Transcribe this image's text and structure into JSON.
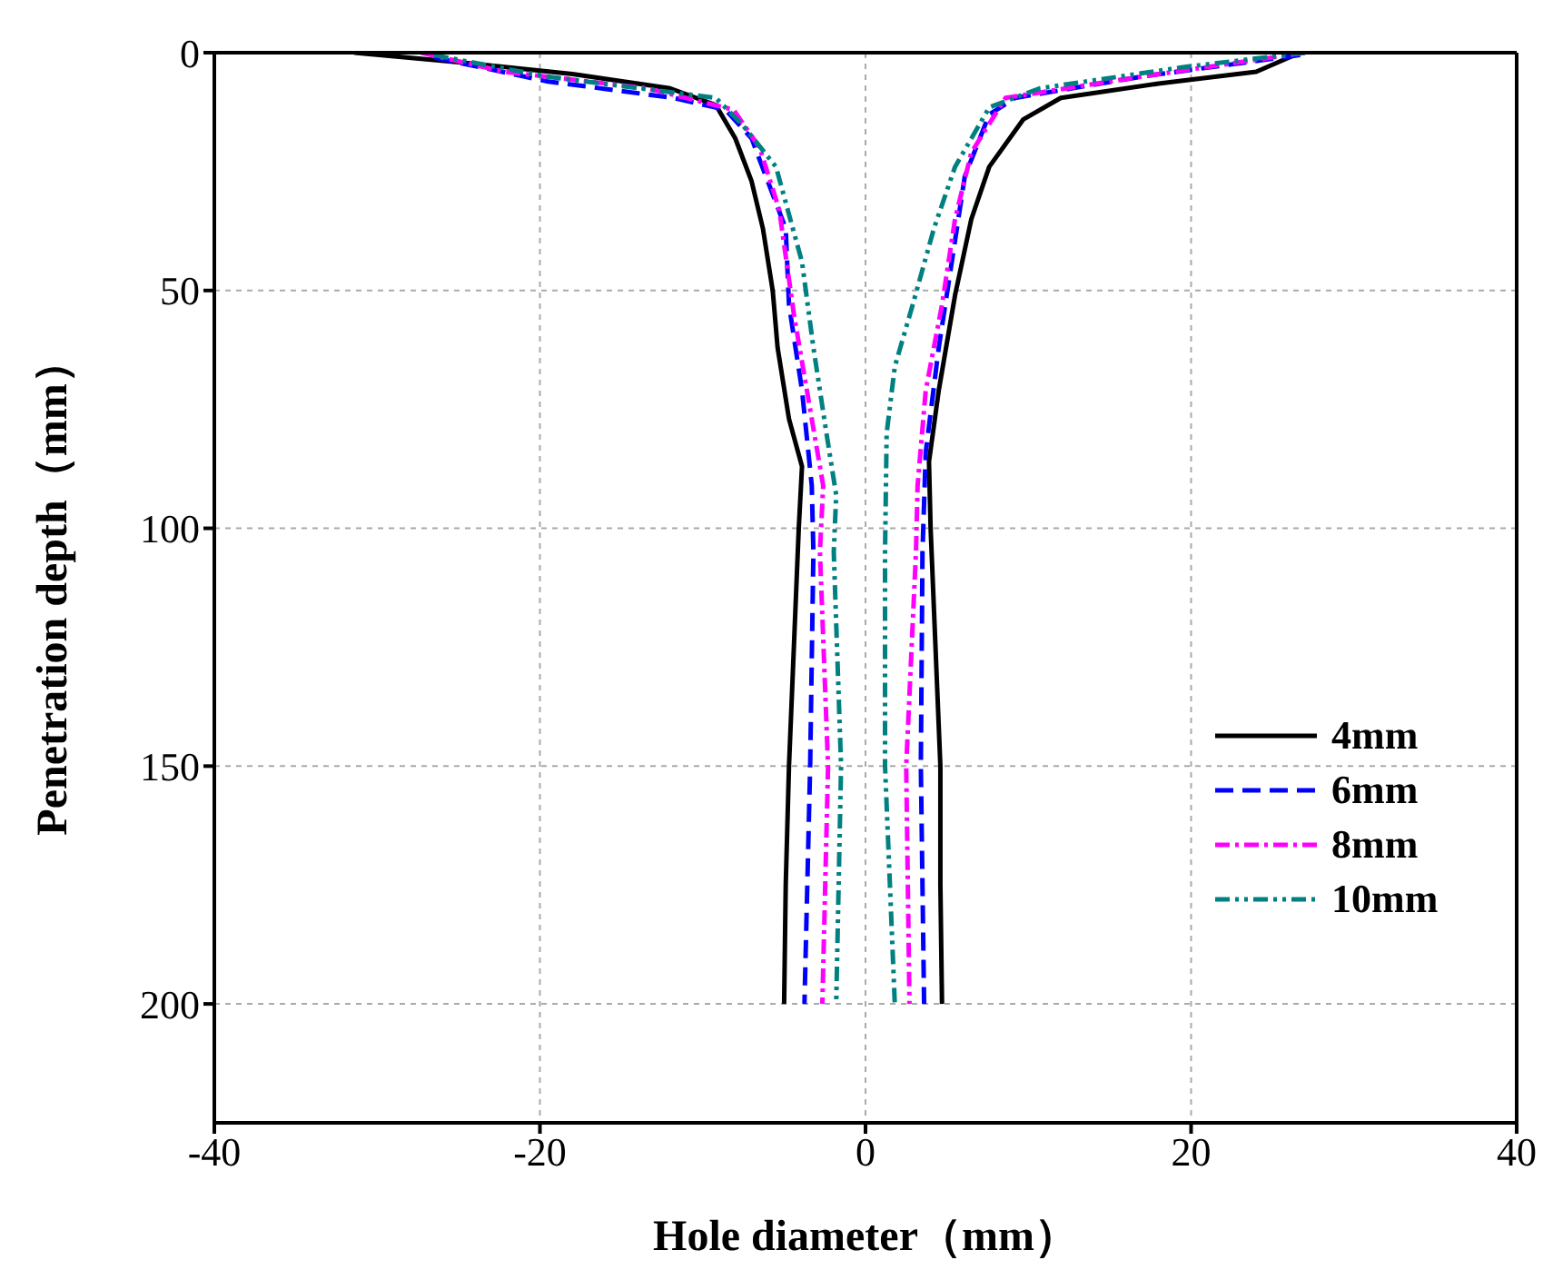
{
  "chart_data": {
    "type": "line",
    "xlabel": "Hole diameter（mm）",
    "ylabel": "Penetration depth（mm）",
    "xlim": [
      -40,
      40
    ],
    "xticks": [
      -40,
      -20,
      0,
      20,
      40
    ],
    "ylim": [
      225,
      0
    ],
    "yticks": [
      0,
      50,
      100,
      150,
      200
    ],
    "grid": true,
    "legend": "bottom right",
    "series": [
      {
        "name": "4mm",
        "color": "#000000",
        "line_style": "solid",
        "x": [
          -31.4,
          -25,
          -18,
          -12,
          -9.2,
          -8,
          -7,
          -6.3,
          -5.7,
          -5.4,
          -4.7,
          -3.9,
          -4.1,
          -4.4,
          -4.7,
          -4.9,
          -5,
          null,
          26.7,
          24,
          18,
          12,
          9.7,
          7.6,
          6.5,
          5.5,
          4.5,
          3.9,
          4,
          4.3,
          4.6,
          4.6,
          4.7
        ],
        "values": [
          0,
          2,
          4.5,
          7.5,
          11,
          18,
          27,
          37,
          50,
          62,
          77,
          87,
          100,
          125,
          150,
          175,
          200,
          null,
          0,
          4,
          6.5,
          9.5,
          14,
          24,
          35,
          51,
          71,
          86,
          100,
          125,
          150,
          175,
          200
        ]
      },
      {
        "name": "6mm",
        "color": "#0000ff",
        "line_style": "dashed",
        "x": [
          -26.5,
          -19.6,
          -11.8,
          -8.6,
          -7,
          -4.9,
          -4.7,
          -3.9,
          -3.3,
          -3.2,
          -3.4,
          -3.75,
          null,
          26.7,
          17,
          9.2,
          7.6,
          6.1,
          5.3,
          4.5,
          3.7,
          3.5,
          3.4,
          3.6
        ],
        "values": [
          1,
          6,
          9.5,
          12,
          18,
          37,
          53,
          71,
          91,
          105,
          150,
          200,
          null,
          0.5,
          5,
          9.5,
          13,
          26,
          44,
          62,
          84,
          105,
          150,
          200
        ]
      },
      {
        "name": "8mm",
        "color": "#ff00ff",
        "line_style": "dashdot",
        "x": [
          -27.3,
          -22.2,
          -13.4,
          -8.1,
          -6.5,
          -5.3,
          -4.4,
          -3.4,
          -2.6,
          -2.8,
          -2.3,
          -2.65,
          null,
          27,
          17,
          8.6,
          6.5,
          5.5,
          4.7,
          3.7,
          3.2,
          3.1,
          2.5,
          2.7
        ],
        "values": [
          0,
          4,
          7.5,
          12,
          20,
          33,
          55,
          75,
          91,
          105,
          150,
          200,
          null,
          0,
          5,
          9.5,
          21,
          35,
          53,
          71,
          91,
          105,
          150,
          200
        ]
      },
      {
        "name": "10mm",
        "color": "#008080",
        "line_style": "dashdotdot",
        "x": [
          -26.5,
          -19.6,
          -9.2,
          -7.6,
          -5.5,
          -3.9,
          -3.2,
          -2.4,
          -1.8,
          -1.95,
          -1.5,
          -1.8,
          null,
          27,
          19.6,
          10.7,
          7.6,
          5.5,
          4.2,
          2.9,
          1.8,
          1.3,
          1.2,
          1.2,
          1.8
        ],
        "values": [
          0.5,
          5,
          9.5,
          15,
          24,
          44,
          62,
          80,
          93,
          105,
          150,
          200,
          null,
          0,
          3,
          7.5,
          11.5,
          24,
          37,
          53,
          66,
          80,
          105,
          150,
          200
        ]
      }
    ]
  }
}
